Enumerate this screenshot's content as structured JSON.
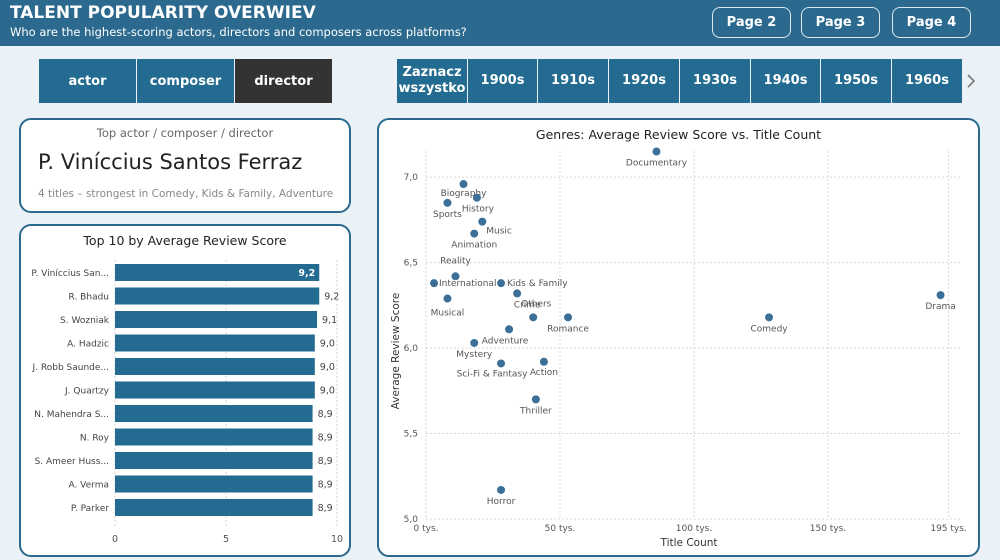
{
  "header": {
    "title": "TALENT POPULARITY OVERWIEV",
    "subtitle": "Who are the highest-scoring actors, directors and composers across platforms?",
    "pages": [
      "Page 2",
      "Page 3",
      "Page 4"
    ]
  },
  "roles": {
    "items": [
      "actor",
      "composer",
      "director"
    ],
    "selected": "director"
  },
  "decades": {
    "select_all": "Zaznacz wszystko",
    "items": [
      "1900s",
      "1910s",
      "1920s",
      "1930s",
      "1940s",
      "1950s",
      "1960s"
    ]
  },
  "top_card": {
    "label": "Top actor / composer / director",
    "name": "P. Viníccius Santos Ferraz",
    "description": "4 titles – strongest in Comedy, Kids & Family, Adventure"
  },
  "colors": {
    "accent": "#2b6a8e",
    "bar": "#236b90",
    "point": "#3b6f97",
    "active": "#333333"
  },
  "chart_data": [
    {
      "type": "bar",
      "title": "Top 10 by Average Review Score",
      "categories": [
        "P. Viníccius San...",
        "R. Bhadu",
        "S. Wozniak",
        "A. Hadzic",
        "J. Robb Saunde...",
        "J. Quartzy",
        "N. Mahendra S...",
        "N. Roy",
        "S. Ameer Huss...",
        "A. Verma",
        "P. Parker"
      ],
      "values": [
        9.2,
        9.2,
        9.1,
        9.0,
        9.0,
        9.0,
        8.9,
        8.9,
        8.9,
        8.9,
        8.9
      ],
      "data_labels": [
        "9,2",
        "9,2",
        "9,1",
        "9,0",
        "9,0",
        "9,0",
        "8,9",
        "8,9",
        "8,9",
        "8,9",
        "8,9"
      ],
      "xlim": [
        0,
        10
      ],
      "x_ticks": [
        0,
        5,
        10
      ],
      "x_tick_labels": [
        "0",
        "5",
        "10"
      ],
      "grid": true
    },
    {
      "type": "scatter",
      "title": "Genres: Average Review Score vs. Title Count",
      "xlabel": "Title Count",
      "ylabel": "Average Review Score",
      "xlim": [
        0,
        200000
      ],
      "ylim": [
        5.0,
        7.2
      ],
      "x_ticks": [
        0,
        50000,
        100000,
        150000,
        195000
      ],
      "x_tick_labels": [
        "0 tys.",
        "50 tys.",
        "100 tys.",
        "150 tys.",
        "195 tys."
      ],
      "y_ticks": [
        5.0,
        5.5,
        6.0,
        6.5,
        7.0
      ],
      "y_tick_labels": [
        "5,0",
        "5,5",
        "6,0",
        "6,5",
        "7,0"
      ],
      "grid": true,
      "points": [
        {
          "label": "Documentary",
          "x": 86000,
          "y": 7.15
        },
        {
          "label": "Biography",
          "x": 14000,
          "y": 6.96
        },
        {
          "label": "Sports",
          "x": 8000,
          "y": 6.85
        },
        {
          "label": "History",
          "x": 19000,
          "y": 6.88
        },
        {
          "label": "Music",
          "x": 21000,
          "y": 6.74
        },
        {
          "label": "Animation",
          "x": 18000,
          "y": 6.67
        },
        {
          "label": "Reality",
          "x": 11000,
          "y": 6.42
        },
        {
          "label": "International",
          "x": 3000,
          "y": 6.38
        },
        {
          "label": "Kids & Family",
          "x": 28000,
          "y": 6.38
        },
        {
          "label": "Others",
          "x": 34000,
          "y": 6.32
        },
        {
          "label": "Musical",
          "x": 8000,
          "y": 6.29
        },
        {
          "label": "Crime",
          "x": 40000,
          "y": 6.18
        },
        {
          "label": "Romance",
          "x": 53000,
          "y": 6.18
        },
        {
          "label": "Comedy",
          "x": 128000,
          "y": 6.18
        },
        {
          "label": "Drama",
          "x": 192000,
          "y": 6.31
        },
        {
          "label": "Adventure",
          "x": 31000,
          "y": 6.11
        },
        {
          "label": "Mystery",
          "x": 18000,
          "y": 6.03
        },
        {
          "label": "Sci-Fi & Fantasy",
          "x": 28000,
          "y": 5.91
        },
        {
          "label": "Action",
          "x": 44000,
          "y": 5.92
        },
        {
          "label": "Thriller",
          "x": 41000,
          "y": 5.7
        },
        {
          "label": "Horror",
          "x": 28000,
          "y": 5.17
        }
      ]
    }
  ]
}
